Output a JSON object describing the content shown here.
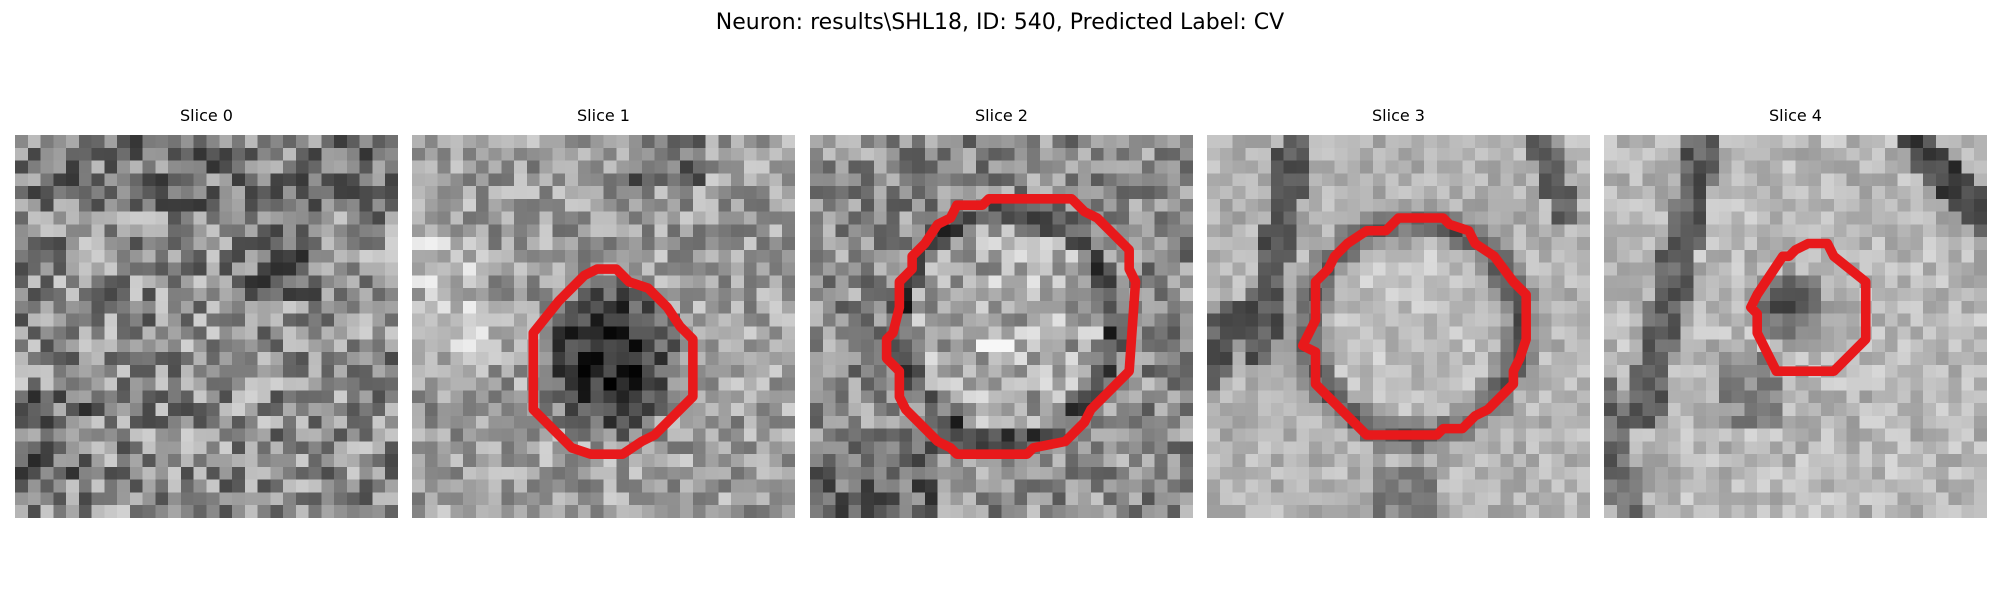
{
  "figure": {
    "title": "Neuron: results\\SHL18, ID: 540, Predicted Label: CV"
  },
  "colors": {
    "contour": "#e8191b",
    "background": "#ffffff",
    "colormap": "grayscale"
  },
  "slices": [
    {
      "title": "Slice 0",
      "texture": "uniform-noise",
      "contour": false
    },
    {
      "title": "Slice 1",
      "texture": "dark-blob",
      "contour": true
    },
    {
      "title": "Slice 2",
      "texture": "ring-membrane",
      "contour": true
    },
    {
      "title": "Slice 3",
      "texture": "ring-membrane-smooth",
      "contour": true
    },
    {
      "title": "Slice 4",
      "texture": "small-blob-with-streaks",
      "contour": true
    }
  ]
}
